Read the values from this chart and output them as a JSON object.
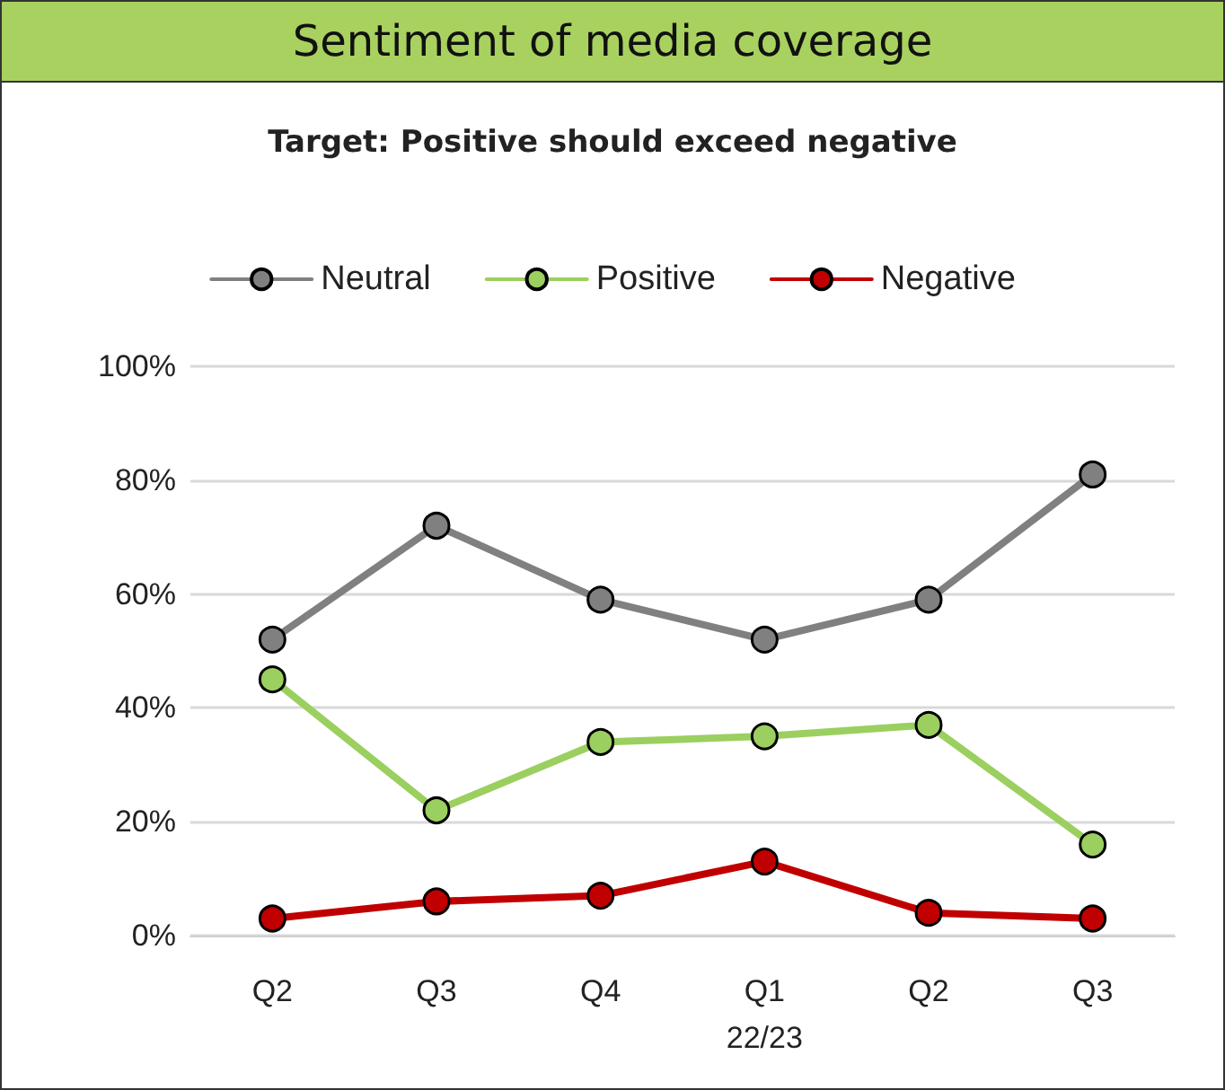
{
  "chart_data": {
    "type": "line",
    "title": "Sentiment of media coverage",
    "subtitle": "Target: Positive should exceed negative",
    "categories": [
      "Q2",
      "Q3",
      "Q4",
      "Q1\n22/23",
      "Q2",
      "Q3"
    ],
    "series": [
      {
        "name": "Neutral",
        "color": "#808080",
        "values": [
          52,
          72,
          59,
          52,
          59,
          81
        ]
      },
      {
        "name": "Positive",
        "color": "#9bcf5f",
        "values": [
          45,
          22,
          34,
          35,
          37,
          16
        ]
      },
      {
        "name": "Negative",
        "color": "#c00000",
        "values": [
          3,
          6,
          7,
          13,
          4,
          3
        ]
      }
    ],
    "ylim": [
      0,
      100
    ],
    "yticks": [
      {
        "value": 0,
        "label": "0%"
      },
      {
        "value": 20,
        "label": "20%"
      },
      {
        "value": 40,
        "label": "40%"
      },
      {
        "value": 60,
        "label": "60%"
      },
      {
        "value": 80,
        "label": "80%"
      },
      {
        "value": 100,
        "label": "100%"
      }
    ],
    "grid": "y",
    "legend": "top",
    "marker": "circle",
    "line_style": "solid"
  }
}
